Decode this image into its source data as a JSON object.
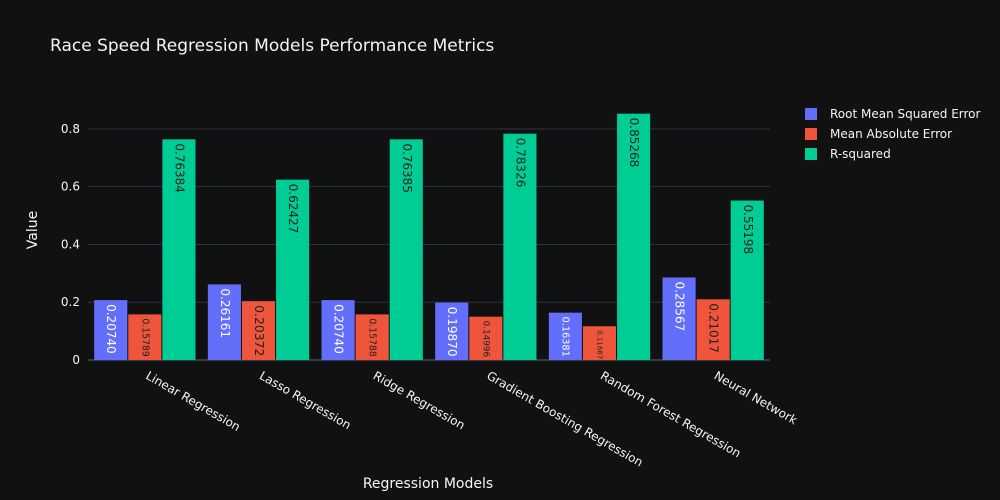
{
  "chart_data": {
    "type": "bar",
    "title": "Race Speed Regression Models Performance Metrics",
    "xlabel": "Regression Models",
    "ylabel": "Value",
    "categories": [
      "Linear Regression",
      "Lasso Regression",
      "Ridge Regression",
      "Gradient Boosting Regression",
      "Random Forest Regression",
      "Neural Network"
    ],
    "series": [
      {
        "name": "Root Mean Squared Error",
        "color": "#636efa",
        "label_color": "#ffffff",
        "values": [
          0.2074,
          0.26161,
          0.2074,
          0.1987,
          0.16381,
          0.28567
        ],
        "labels": [
          "0.20740",
          "0.26161",
          "0.20740",
          "0.19870",
          "0.16381",
          "0.28567"
        ]
      },
      {
        "name": "Mean Absolute Error",
        "color": "#ef553b",
        "label_color": "#222222",
        "values": [
          0.15789,
          0.20372,
          0.15788,
          0.14996,
          0.11687,
          0.21017
        ],
        "labels": [
          "0.15789",
          "0.20372",
          "0.15788",
          "0.14996",
          "0.11687",
          "0.21017"
        ]
      },
      {
        "name": "R-squared",
        "color": "#00cc96",
        "label_color": "#222222",
        "values": [
          0.76384,
          0.62427,
          0.76385,
          0.78326,
          0.85268,
          0.55198
        ],
        "labels": [
          "0.76384",
          "0.62427",
          "0.76385",
          "0.78326",
          "0.85268",
          "0.55198"
        ]
      }
    ],
    "ylim": [
      0,
      0.9
    ],
    "yticks": [
      0,
      0.2,
      0.4,
      0.6,
      0.8
    ],
    "ytick_labels": [
      "0",
      "0.2",
      "0.4",
      "0.6",
      "0.8"
    ],
    "grid": true,
    "legend_position": "top-right",
    "background": "#111111"
  }
}
